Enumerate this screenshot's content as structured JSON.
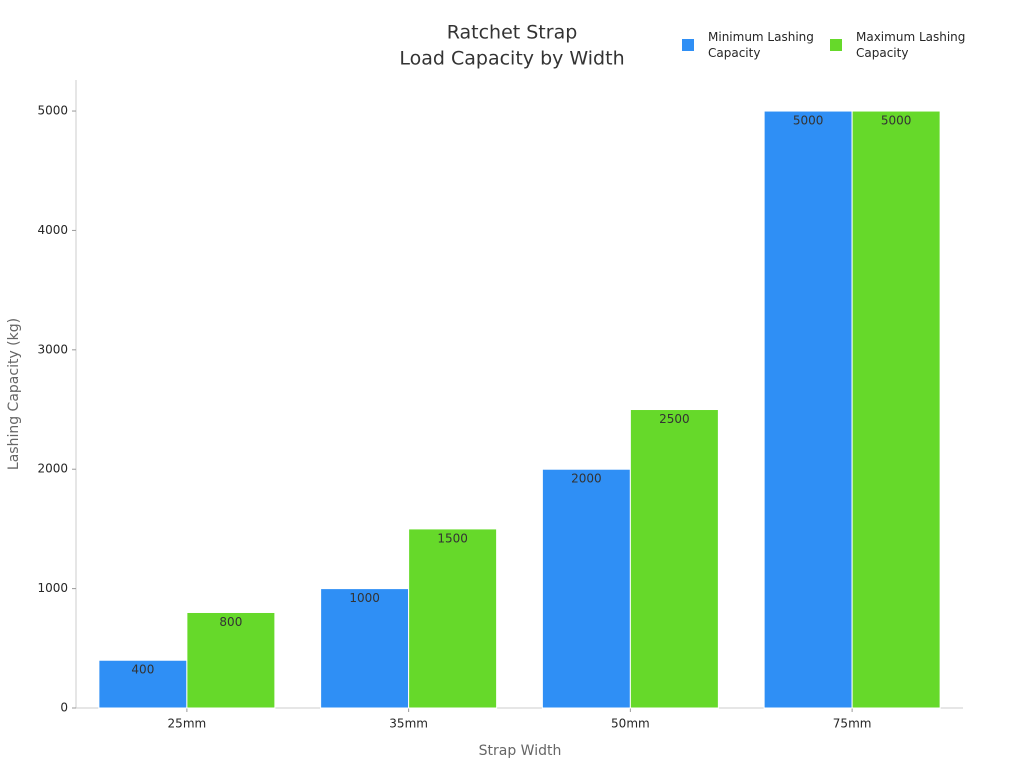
{
  "chart_data": {
    "type": "bar",
    "title": [
      "Ratchet Strap",
      "Load Capacity by Width"
    ],
    "x_label": "Strap Width",
    "y_label": "Lashing Capacity (kg)",
    "categories": [
      "25mm",
      "35mm",
      "50mm",
      "75mm"
    ],
    "series": [
      {
        "name": "Minimum Lashing Capacity",
        "color": "#2f8ff5",
        "values": [
          400,
          1000,
          2000,
          5000
        ]
      },
      {
        "name": "Maximum Lashing Capacity",
        "color": "#66d92a",
        "values": [
          800,
          1500,
          2500,
          5000
        ]
      }
    ],
    "ylim": [
      0,
      5260
    ],
    "yticks": [
      0,
      1000,
      2000,
      3000,
      4000,
      5000
    ],
    "grid": false,
    "legend": "top-right"
  }
}
